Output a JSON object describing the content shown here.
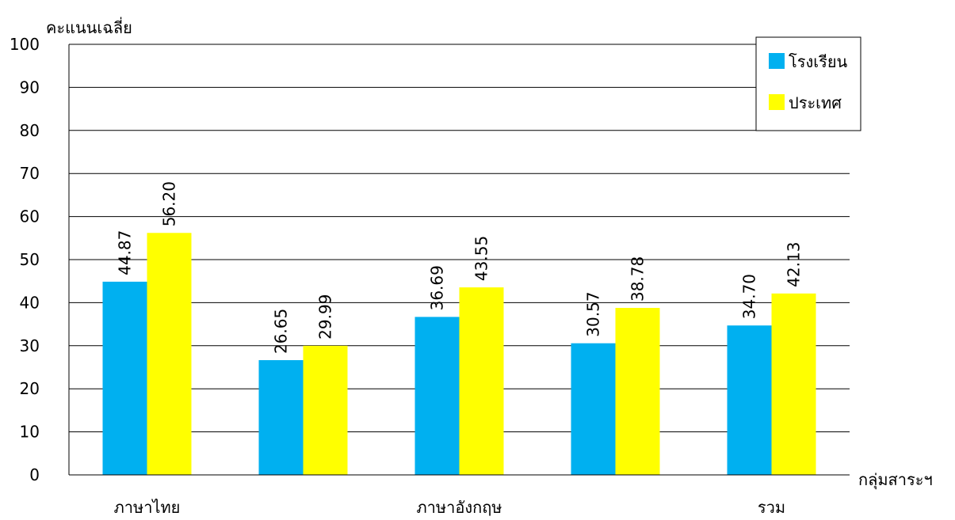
{
  "chart_data": {
    "type": "bar",
    "ylabel": "คะแนนเฉลี่ย",
    "xlabel": "กลุ่มสาระฯ",
    "ylim": [
      0,
      100
    ],
    "ytick_step": 10,
    "grid": true,
    "legend_position": "top-right",
    "categories": [
      "ภาษาไทย",
      "",
      "ภาษาอังกฤษ",
      "",
      "รวม"
    ],
    "series": [
      {
        "name": "โรงเรียน",
        "color": "#00b0f0",
        "values": [
          44.87,
          26.65,
          36.69,
          30.57,
          34.7
        ],
        "labels": [
          "44.87",
          "26.65",
          "36.69",
          "30.57",
          "34.70"
        ]
      },
      {
        "name": "ประเทศ",
        "color": "#ffff00",
        "values": [
          56.2,
          29.99,
          43.55,
          38.78,
          42.13
        ],
        "labels": [
          "56.20",
          "29.99",
          "43.55",
          "38.78",
          "42.13"
        ]
      }
    ]
  }
}
